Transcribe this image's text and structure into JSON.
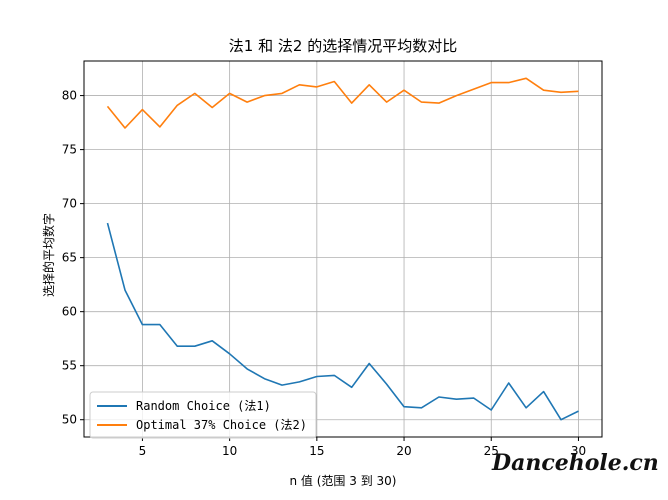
{
  "chart_data": {
    "type": "line",
    "title": "法1 和 法2 的选择情况平均数对比",
    "xlabel": "n 值 (范围 3 到 30)",
    "ylabel": "选择的平均数字",
    "xlim": [
      1.65,
      31.35
    ],
    "ylim": [
      48.4,
      83.2
    ],
    "xticks": [
      5,
      10,
      15,
      20,
      25,
      30
    ],
    "xtick_labels": [
      "5",
      "10",
      "15",
      "20",
      "25",
      "30"
    ],
    "yticks": [
      50,
      55,
      60,
      65,
      70,
      75,
      80
    ],
    "ytick_labels": [
      "50",
      "55",
      "60",
      "65",
      "70",
      "75",
      "80"
    ],
    "grid": true,
    "legend": "lower-left",
    "x": [
      3,
      4,
      5,
      6,
      7,
      8,
      9,
      10,
      11,
      12,
      13,
      14,
      15,
      16,
      17,
      18,
      19,
      20,
      21,
      22,
      23,
      24,
      25,
      26,
      27,
      28,
      29,
      30
    ],
    "series": [
      {
        "name": "Random Choice (法1)",
        "color": "#1f77b4",
        "values": [
          68.2,
          62.0,
          58.8,
          58.8,
          56.8,
          56.8,
          57.3,
          56.1,
          54.7,
          53.8,
          53.2,
          53.5,
          54.0,
          54.1,
          53.0,
          55.2,
          53.3,
          51.2,
          51.1,
          52.1,
          51.9,
          52.0,
          50.9,
          53.4,
          51.1,
          52.6,
          50.0,
          50.8
        ]
      },
      {
        "name": "Optimal 37% Choice (法2)",
        "color": "#ff7f0e",
        "values": [
          79.0,
          77.0,
          78.7,
          77.1,
          79.1,
          80.2,
          78.9,
          80.2,
          79.4,
          80.0,
          80.2,
          81.0,
          80.8,
          81.3,
          79.3,
          81.0,
          79.4,
          80.5,
          79.4,
          79.3,
          80.0,
          80.6,
          81.2,
          81.2,
          81.6,
          80.5,
          80.3,
          80.4
        ]
      }
    ]
  },
  "watermark": {
    "text": "Dancehole.cn"
  }
}
